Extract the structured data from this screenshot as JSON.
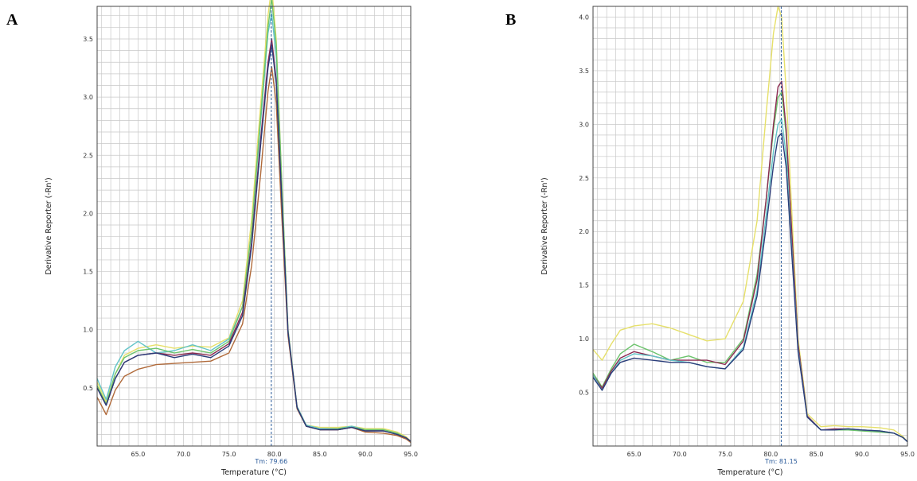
{
  "panels": [
    {
      "letter": "A"
    },
    {
      "letter": "B"
    }
  ],
  "chart_data": [
    {
      "type": "line",
      "panel": "A",
      "title": "",
      "xlabel": "Temperature (°C)",
      "ylabel": "Derivative Reporter (-Rn')",
      "xlim": [
        60.5,
        95.0
      ],
      "ylim": [
        0.0,
        3.78
      ],
      "xticks": [
        "65.0",
        "70.0",
        "75.0",
        "80.0",
        "85.0",
        "90.0",
        "95.0"
      ],
      "yticks": [
        "0.5",
        "1.0",
        "1.5",
        "2.0",
        "2.5",
        "3.0",
        "3.5"
      ],
      "grid": true,
      "tm_value": 79.66,
      "tm_label": "Tm: 79.66",
      "series": [
        {
          "color": "#b06a3a",
          "x": [
            60.5,
            61.5,
            62.5,
            63.5,
            65,
            67,
            69,
            71,
            73,
            75,
            76.5,
            77.5,
            78.5,
            79.3,
            79.7,
            80.2,
            80.8,
            81.5,
            82.5,
            83.5,
            85,
            87,
            88.5,
            90,
            92,
            93.5,
            94.5,
            95
          ],
          "y": [
            0.42,
            0.27,
            0.48,
            0.6,
            0.66,
            0.7,
            0.71,
            0.72,
            0.73,
            0.8,
            1.05,
            1.55,
            2.35,
            3.05,
            3.26,
            2.95,
            2.0,
            0.95,
            0.32,
            0.17,
            0.14,
            0.14,
            0.16,
            0.12,
            0.11,
            0.09,
            0.06,
            0.03
          ]
        },
        {
          "color": "#e6e06a",
          "x": [
            60.5,
            61.5,
            62.5,
            63.5,
            65,
            67,
            69,
            71,
            73,
            75,
            76.5,
            77.5,
            78.5,
            79.3,
            79.7,
            80.2,
            80.8,
            81.5,
            82.5,
            83.5,
            85,
            87,
            88.5,
            90,
            92,
            93.5,
            94.5,
            95
          ],
          "y": [
            0.55,
            0.38,
            0.62,
            0.78,
            0.84,
            0.87,
            0.84,
            0.86,
            0.85,
            0.93,
            1.25,
            1.95,
            2.95,
            3.7,
            3.95,
            3.5,
            2.3,
            1.0,
            0.34,
            0.18,
            0.16,
            0.16,
            0.17,
            0.15,
            0.15,
            0.12,
            0.08,
            0.04
          ]
        },
        {
          "color": "#62c4c8",
          "x": [
            60.5,
            61.5,
            62.5,
            63.5,
            65,
            67,
            69,
            71,
            73,
            75,
            76.5,
            77.5,
            78.5,
            79.3,
            79.7,
            80.2,
            80.8,
            81.5,
            82.5,
            83.5,
            85,
            87,
            88.5,
            90,
            92,
            93.5,
            94.5,
            95
          ],
          "y": [
            0.58,
            0.4,
            0.68,
            0.82,
            0.9,
            0.8,
            0.82,
            0.87,
            0.82,
            0.92,
            1.2,
            1.85,
            2.8,
            3.55,
            3.72,
            3.35,
            2.25,
            1.0,
            0.34,
            0.18,
            0.15,
            0.15,
            0.17,
            0.14,
            0.14,
            0.11,
            0.07,
            0.04
          ]
        },
        {
          "color": "#6cc36c",
          "x": [
            60.5,
            61.5,
            62.5,
            63.5,
            65,
            67,
            69,
            71,
            73,
            75,
            76.5,
            77.5,
            78.5,
            79.3,
            79.7,
            80.2,
            80.8,
            81.5,
            82.5,
            83.5,
            85,
            87,
            88.5,
            90,
            92,
            93.5,
            94.5,
            95
          ],
          "y": [
            0.52,
            0.36,
            0.62,
            0.76,
            0.82,
            0.84,
            0.8,
            0.83,
            0.8,
            0.9,
            1.2,
            1.85,
            2.85,
            3.6,
            3.85,
            3.45,
            2.3,
            1.0,
            0.33,
            0.17,
            0.14,
            0.15,
            0.16,
            0.14,
            0.14,
            0.11,
            0.07,
            0.04
          ]
        },
        {
          "color": "#8a2a50",
          "x": [
            60.5,
            61.5,
            62.5,
            63.5,
            65,
            67,
            69,
            71,
            73,
            75,
            76.5,
            77.5,
            78.5,
            79.3,
            79.7,
            80.2,
            80.8,
            81.5,
            82.5,
            83.5,
            85,
            87,
            88.5,
            90,
            92,
            93.5,
            94.5,
            95
          ],
          "y": [
            0.5,
            0.35,
            0.58,
            0.72,
            0.78,
            0.8,
            0.78,
            0.8,
            0.78,
            0.88,
            1.15,
            1.75,
            2.65,
            3.3,
            3.5,
            3.15,
            2.15,
            0.98,
            0.33,
            0.17,
            0.14,
            0.14,
            0.16,
            0.13,
            0.13,
            0.1,
            0.07,
            0.04
          ]
        },
        {
          "color": "#2a3d7a",
          "x": [
            60.5,
            61.5,
            62.5,
            63.5,
            65,
            67,
            69,
            71,
            73,
            75,
            76.5,
            77.5,
            78.5,
            79.3,
            79.7,
            80.2,
            80.8,
            81.5,
            82.5,
            83.5,
            85,
            87,
            88.5,
            90,
            92,
            93.5,
            94.5,
            95
          ],
          "y": [
            0.5,
            0.35,
            0.58,
            0.72,
            0.78,
            0.8,
            0.76,
            0.79,
            0.76,
            0.86,
            1.12,
            1.72,
            2.6,
            3.25,
            3.45,
            3.12,
            2.15,
            0.98,
            0.33,
            0.17,
            0.14,
            0.14,
            0.16,
            0.13,
            0.13,
            0.1,
            0.07,
            0.04
          ]
        }
      ]
    },
    {
      "type": "line",
      "panel": "B",
      "title": "",
      "xlabel": "Temperature (°C)",
      "ylabel": "Derivative Reporter (-Rn')",
      "xlim": [
        60.5,
        95.0
      ],
      "ylim": [
        0.0,
        4.1
      ],
      "xticks": [
        "65.0",
        "70.0",
        "75.0",
        "80.0",
        "85.0",
        "90.0",
        "95.0"
      ],
      "yticks": [
        "0.5",
        "1.0",
        "1.5",
        "2.0",
        "2.5",
        "3.0",
        "3.5",
        "4.0"
      ],
      "grid": true,
      "tm_value": 81.15,
      "tm_label": "Tm: 81.15",
      "series": [
        {
          "color": "#e6e06a",
          "x": [
            60.5,
            61.5,
            62.5,
            63.5,
            65,
            67,
            69,
            71,
            73,
            75,
            77,
            78.5,
            79.5,
            80.3,
            80.8,
            81.2,
            81.7,
            82.3,
            83,
            84,
            85.5,
            87,
            88.5,
            90,
            92,
            93.5,
            94.5,
            95
          ],
          "y": [
            0.9,
            0.8,
            0.95,
            1.08,
            1.12,
            1.14,
            1.1,
            1.04,
            0.98,
            1.0,
            1.35,
            2.1,
            3.1,
            3.85,
            4.1,
            4.0,
            3.3,
            2.2,
            1.0,
            0.3,
            0.18,
            0.19,
            0.18,
            0.18,
            0.17,
            0.15,
            0.09,
            0.04
          ]
        },
        {
          "color": "#6cc36c",
          "x": [
            60.5,
            61.5,
            62.5,
            63.5,
            65,
            67,
            69,
            71,
            73,
            75,
            77,
            78.5,
            79.5,
            80.3,
            80.8,
            81.2,
            81.7,
            82.3,
            83,
            84,
            85.5,
            87,
            88.5,
            90,
            92,
            93.5,
            94.5,
            95
          ],
          "y": [
            0.68,
            0.55,
            0.72,
            0.86,
            0.95,
            0.88,
            0.8,
            0.84,
            0.78,
            0.78,
            1.0,
            1.6,
            2.3,
            2.95,
            3.25,
            3.3,
            2.9,
            2.0,
            0.95,
            0.28,
            0.15,
            0.15,
            0.15,
            0.14,
            0.13,
            0.12,
            0.08,
            0.04
          ]
        },
        {
          "color": "#8a2a50",
          "x": [
            60.5,
            61.5,
            62.5,
            63.5,
            65,
            67,
            69,
            71,
            73,
            75,
            77,
            78.5,
            79.5,
            80.3,
            80.8,
            81.2,
            81.7,
            82.3,
            83,
            84,
            85.5,
            87,
            88.5,
            90,
            92,
            93.5,
            94.5,
            95
          ],
          "y": [
            0.66,
            0.54,
            0.7,
            0.82,
            0.88,
            0.84,
            0.8,
            0.8,
            0.8,
            0.76,
            0.98,
            1.55,
            2.3,
            3.0,
            3.35,
            3.4,
            2.95,
            2.0,
            0.95,
            0.28,
            0.15,
            0.16,
            0.16,
            0.15,
            0.14,
            0.12,
            0.08,
            0.04
          ]
        },
        {
          "color": "#62c4c8",
          "x": [
            60.5,
            61.5,
            62.5,
            63.5,
            65,
            67,
            69,
            71,
            73,
            75,
            77,
            78.5,
            79.5,
            80.3,
            80.8,
            81.2,
            81.7,
            82.3,
            83,
            84,
            85.5,
            87,
            88.5,
            90,
            92,
            93.5,
            94.5,
            95
          ],
          "y": [
            0.66,
            0.52,
            0.68,
            0.8,
            0.86,
            0.84,
            0.8,
            0.78,
            0.74,
            0.72,
            0.92,
            1.45,
            2.15,
            2.75,
            3.0,
            3.05,
            2.7,
            1.85,
            0.9,
            0.27,
            0.15,
            0.15,
            0.16,
            0.15,
            0.14,
            0.12,
            0.08,
            0.04
          ]
        },
        {
          "color": "#2a3d7a",
          "x": [
            60.5,
            61.5,
            62.5,
            63.5,
            65,
            67,
            69,
            71,
            73,
            75,
            77,
            78.5,
            79.5,
            80.3,
            80.8,
            81.2,
            81.7,
            82.3,
            83,
            84,
            85.5,
            87,
            88.5,
            90,
            92,
            93.5,
            94.5,
            95
          ],
          "y": [
            0.64,
            0.52,
            0.68,
            0.78,
            0.82,
            0.8,
            0.78,
            0.78,
            0.74,
            0.72,
            0.9,
            1.4,
            2.05,
            2.62,
            2.88,
            2.92,
            2.6,
            1.8,
            0.88,
            0.27,
            0.15,
            0.15,
            0.16,
            0.15,
            0.14,
            0.12,
            0.08,
            0.04
          ]
        }
      ]
    }
  ]
}
